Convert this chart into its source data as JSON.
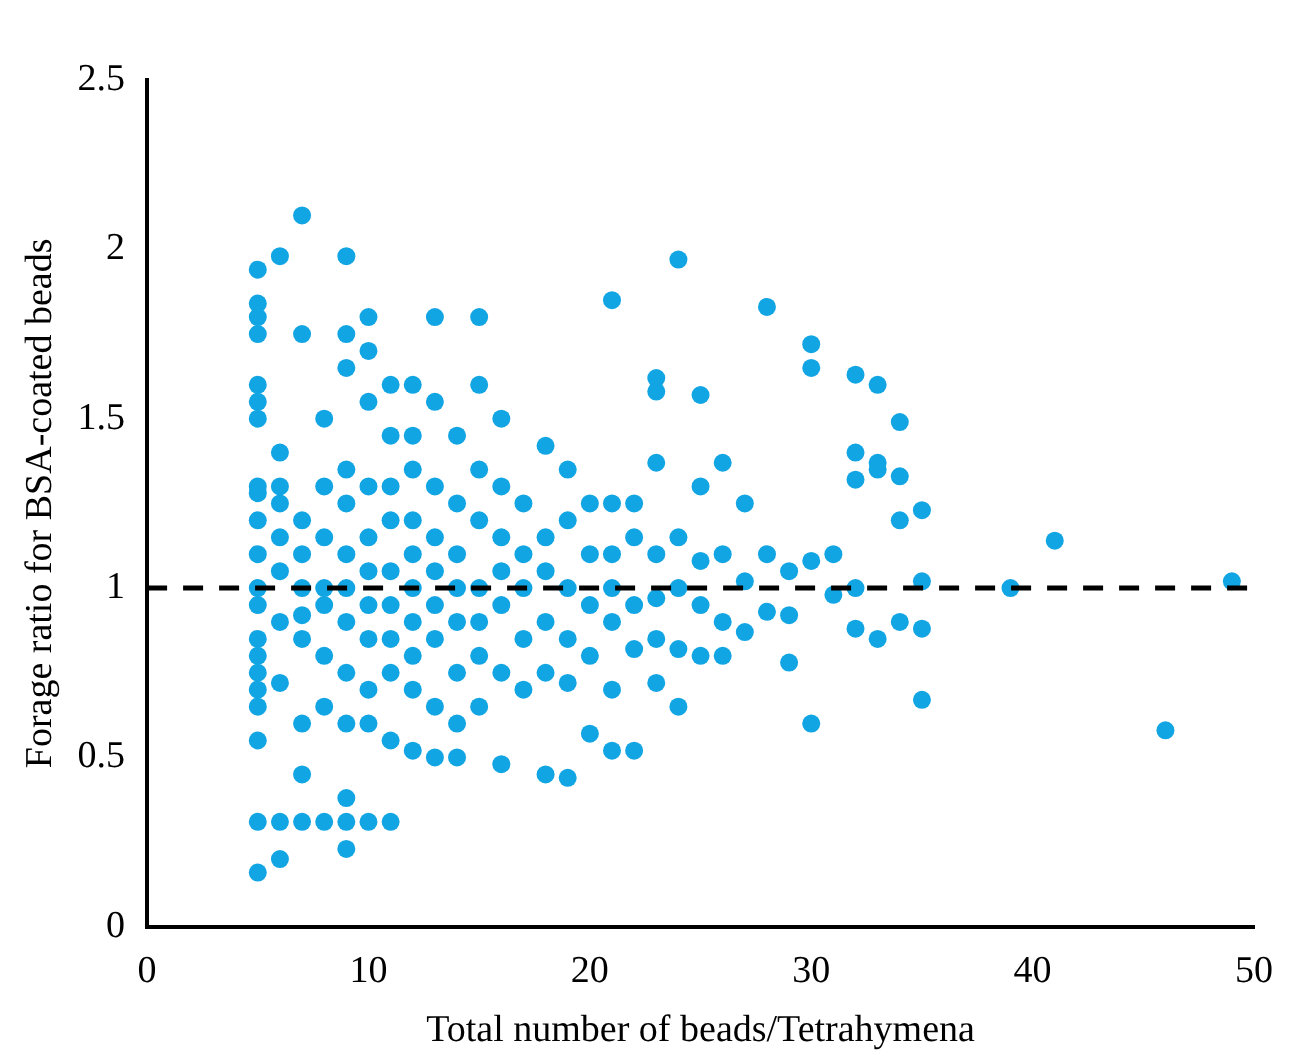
{
  "chart_data": {
    "type": "scatter",
    "xlabel": "Total number of beads/Tetrahymena",
    "ylabel": "Forage ratio for BSA-coated beads",
    "xlim": [
      0,
      50
    ],
    "xticks": [
      0,
      10,
      20,
      30,
      40,
      50
    ],
    "ylim": [
      0,
      2.5
    ],
    "yticks": [
      0,
      0.5,
      1,
      1.5,
      2,
      2.5
    ],
    "grid": false,
    "marker": "circle",
    "legend": false,
    "ref_lines": [
      {
        "axis": "y",
        "value": 1,
        "color": "#000000",
        "line_style": "dashed"
      }
    ],
    "series": [
      {
        "color": "#12a5e3",
        "x": [
          5,
          5,
          5,
          5,
          5,
          5,
          5,
          5,
          5,
          5,
          5,
          5,
          5,
          5,
          5,
          5,
          5,
          5,
          5,
          5,
          5,
          6,
          6,
          6,
          6,
          6,
          6,
          6,
          6,
          6,
          6,
          7,
          7,
          7,
          7,
          7,
          7,
          7,
          7,
          7,
          7,
          8,
          8,
          8,
          8,
          8,
          8,
          8,
          8,
          9,
          9,
          9,
          9,
          9,
          9,
          9,
          9,
          9,
          9,
          9,
          9,
          9,
          10,
          10,
          10,
          10,
          10,
          10,
          10,
          10,
          10,
          10,
          10,
          11,
          11,
          11,
          11,
          11,
          11,
          11,
          11,
          11,
          11,
          12,
          12,
          12,
          12,
          12,
          12,
          12,
          12,
          12,
          12,
          13,
          13,
          13,
          13,
          13,
          13,
          13,
          13,
          13,
          14,
          14,
          14,
          14,
          14,
          14,
          14,
          14,
          15,
          15,
          15,
          15,
          15,
          15,
          15,
          15,
          16,
          16,
          16,
          16,
          16,
          16,
          16,
          17,
          17,
          17,
          17,
          17,
          18,
          18,
          18,
          18,
          18,
          18,
          19,
          19,
          19,
          19,
          19,
          19,
          20,
          20,
          20,
          20,
          20,
          21,
          21,
          21,
          21,
          21,
          21,
          21,
          22,
          22,
          22,
          22,
          22,
          23,
          23,
          23,
          23,
          23,
          23,
          23,
          24,
          24,
          24,
          24,
          24,
          25,
          25,
          25,
          25,
          25,
          26,
          26,
          26,
          26,
          27,
          27,
          27,
          28,
          28,
          28,
          29,
          29,
          29,
          30,
          30,
          30,
          30,
          31,
          31,
          32,
          32,
          32,
          32,
          32,
          33,
          33,
          33,
          33,
          34,
          34,
          34,
          34,
          35,
          35,
          35,
          35,
          39,
          41,
          46,
          49
        ],
        "values": [
          1.94,
          1.84,
          1.8,
          1.75,
          1.6,
          1.55,
          1.5,
          1.3,
          1.28,
          1.2,
          1.1,
          1.0,
          0.95,
          0.85,
          0.8,
          0.75,
          0.7,
          0.65,
          0.55,
          0.31,
          0.16,
          1.98,
          1.4,
          1.3,
          1.25,
          1.15,
          1.05,
          0.9,
          0.72,
          0.31,
          0.2,
          2.1,
          1.75,
          1.2,
          1.1,
          1.0,
          0.92,
          0.85,
          0.6,
          0.45,
          0.31,
          1.5,
          1.3,
          1.15,
          1.0,
          0.95,
          0.8,
          0.65,
          0.31,
          1.98,
          1.75,
          1.65,
          1.35,
          1.25,
          1.1,
          1.0,
          0.9,
          0.75,
          0.6,
          0.38,
          0.31,
          0.23,
          1.8,
          1.7,
          1.55,
          1.3,
          1.15,
          1.05,
          0.95,
          0.85,
          0.7,
          0.6,
          0.31,
          1.6,
          1.45,
          1.3,
          1.2,
          1.05,
          0.95,
          0.85,
          0.75,
          0.55,
          0.31,
          1.6,
          1.45,
          1.35,
          1.2,
          1.1,
          1.0,
          0.9,
          0.8,
          0.7,
          0.52,
          1.8,
          1.55,
          1.3,
          1.15,
          1.05,
          0.95,
          0.85,
          0.65,
          0.5,
          1.45,
          1.25,
          1.1,
          1.0,
          0.9,
          0.75,
          0.6,
          0.5,
          1.8,
          1.6,
          1.35,
          1.2,
          1.0,
          0.9,
          0.8,
          0.65,
          1.5,
          1.3,
          1.15,
          1.05,
          0.95,
          0.75,
          0.48,
          1.25,
          1.1,
          1.0,
          0.85,
          0.7,
          1.42,
          1.15,
          1.05,
          0.9,
          0.75,
          0.45,
          1.35,
          1.2,
          1.0,
          0.85,
          0.72,
          0.44,
          1.25,
          1.1,
          0.95,
          0.8,
          0.57,
          1.85,
          1.25,
          1.1,
          1.0,
          0.9,
          0.7,
          0.52,
          1.25,
          1.15,
          0.95,
          0.82,
          0.52,
          1.62,
          1.58,
          1.37,
          1.1,
          0.97,
          0.85,
          0.72,
          1.97,
          1.15,
          1.0,
          0.82,
          0.65,
          1.57,
          1.3,
          1.08,
          0.95,
          0.8,
          1.37,
          1.1,
          0.9,
          0.8,
          1.25,
          1.02,
          0.87,
          1.83,
          1.1,
          0.93,
          1.05,
          0.92,
          0.78,
          1.72,
          1.65,
          1.08,
          0.6,
          1.1,
          0.98,
          1.63,
          1.4,
          1.32,
          1.0,
          0.88,
          1.6,
          1.37,
          1.35,
          0.85,
          1.49,
          1.33,
          1.2,
          0.9,
          1.23,
          1.02,
          0.88,
          0.67,
          1.0,
          1.14,
          0.58,
          1.02
        ]
      }
    ]
  }
}
